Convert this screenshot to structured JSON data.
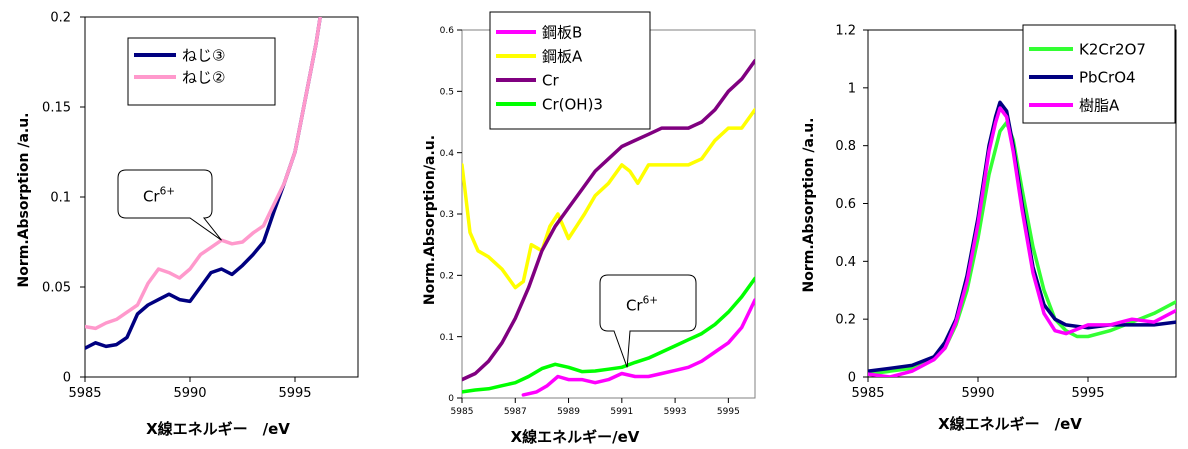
{
  "chart_data": [
    {
      "type": "line",
      "xlabel": "X線エネルギー　/eV",
      "ylabel": "Norm.Absorption /a.u.",
      "xlim": [
        5985,
        5998
      ],
      "ylim": [
        0,
        0.2
      ],
      "xticks": [
        "5985",
        "5990",
        "5995"
      ],
      "xtick_values": [
        5985,
        5990,
        5995
      ],
      "yticks": [
        "0",
        "0.05",
        "0.1",
        "0.15",
        "0.2"
      ],
      "ytick_values": [
        0,
        0.05,
        0.1,
        0.15,
        0.2
      ],
      "legend": {
        "placement": "top-center"
      },
      "annotation": {
        "base": "Cr",
        "sup": "6+",
        "x": 5991.5,
        "y": 0.076
      },
      "series": [
        {
          "name": "ねじ③",
          "color": "#000080",
          "x": [
            5985,
            5985.5,
            5986,
            5986.5,
            5987,
            5987.5,
            5988,
            5988.5,
            5989,
            5989.5,
            5990,
            5990.5,
            5991,
            5991.5,
            5992,
            5992.5,
            5993,
            5993.5,
            5994,
            5994.5,
            5995,
            5995.5,
            5996,
            5996.2
          ],
          "y": [
            0.016,
            0.019,
            0.017,
            0.018,
            0.022,
            0.035,
            0.04,
            0.043,
            0.046,
            0.043,
            0.042,
            0.05,
            0.058,
            0.06,
            0.057,
            0.062,
            0.068,
            0.075,
            0.092,
            0.108,
            0.125,
            0.155,
            0.185,
            0.2
          ]
        },
        {
          "name": "ねじ②",
          "color": "#ff99cc",
          "x": [
            5985,
            5985.5,
            5986,
            5986.5,
            5987,
            5987.5,
            5988,
            5988.5,
            5989,
            5989.5,
            5990,
            5990.5,
            5991,
            5991.5,
            5992,
            5992.5,
            5993,
            5993.5,
            5994,
            5994.5,
            5995,
            5995.5,
            5996,
            5996.2
          ],
          "y": [
            0.028,
            0.027,
            0.03,
            0.032,
            0.036,
            0.04,
            0.052,
            0.06,
            0.058,
            0.055,
            0.06,
            0.068,
            0.072,
            0.076,
            0.074,
            0.075,
            0.08,
            0.084,
            0.096,
            0.108,
            0.125,
            0.155,
            0.185,
            0.2
          ]
        }
      ]
    },
    {
      "type": "line",
      "xlabel": "X線エネルギー/eV",
      "ylabel": "Norm.Absorption/a.u.",
      "xlim": [
        5985,
        5996
      ],
      "ylim": [
        0,
        0.6
      ],
      "xticks": [
        "5985",
        "5987",
        "5989",
        "5991",
        "5993",
        "5995"
      ],
      "xtick_values": [
        5985,
        5987,
        5989,
        5991,
        5993,
        5995
      ],
      "yticks": [
        "0",
        "0.1",
        "0.2",
        "0.3",
        "0.4",
        "0.5",
        "0.6"
      ],
      "ytick_values": [
        0,
        0.1,
        0.2,
        0.3,
        0.4,
        0.5,
        0.6
      ],
      "legend": {
        "placement": "top-left"
      },
      "annotation": {
        "base": "Cr",
        "sup": "6+",
        "x": 5991.2,
        "y": 0.05
      },
      "series": [
        {
          "name": "鋼板B",
          "color": "#ff00ff",
          "x": [
            5987.3,
            5987.8,
            5988.2,
            5988.6,
            5989,
            5989.5,
            5990,
            5990.5,
            5991,
            5991.5,
            5992,
            5992.5,
            5993,
            5993.5,
            5994,
            5994.5,
            5995,
            5995.5,
            5996
          ],
          "y": [
            0.005,
            0.01,
            0.02,
            0.035,
            0.03,
            0.03,
            0.025,
            0.03,
            0.04,
            0.035,
            0.035,
            0.04,
            0.045,
            0.05,
            0.06,
            0.075,
            0.09,
            0.115,
            0.16
          ]
        },
        {
          "name": "鋼板A",
          "color": "#ffff00",
          "x": [
            5985,
            5985.3,
            5985.6,
            5986,
            5986.5,
            5987,
            5987.3,
            5987.6,
            5988,
            5988.3,
            5988.6,
            5989,
            5989.3,
            5989.6,
            5990,
            5990.5,
            5991,
            5991.3,
            5991.6,
            5992,
            5992.5,
            5993,
            5993.5,
            5994,
            5994.5,
            5995,
            5995.5,
            5996
          ],
          "y": [
            0.38,
            0.27,
            0.24,
            0.23,
            0.21,
            0.18,
            0.19,
            0.25,
            0.24,
            0.28,
            0.3,
            0.26,
            0.28,
            0.3,
            0.33,
            0.35,
            0.38,
            0.37,
            0.35,
            0.38,
            0.38,
            0.38,
            0.38,
            0.39,
            0.42,
            0.44,
            0.44,
            0.47
          ]
        },
        {
          "name": "Cr",
          "color": "#800080",
          "x": [
            5985,
            5985.5,
            5986,
            5986.5,
            5987,
            5987.5,
            5988,
            5988.5,
            5989,
            5989.5,
            5990,
            5990.5,
            5991,
            5991.5,
            5992,
            5992.5,
            5993,
            5993.5,
            5994,
            5994.5,
            5995,
            5995.5,
            5996
          ],
          "y": [
            0.03,
            0.04,
            0.06,
            0.09,
            0.13,
            0.18,
            0.24,
            0.28,
            0.31,
            0.34,
            0.37,
            0.39,
            0.41,
            0.42,
            0.43,
            0.44,
            0.44,
            0.44,
            0.45,
            0.47,
            0.5,
            0.52,
            0.55
          ]
        },
        {
          "name": "Cr(OH)3",
          "color": "#00ff00",
          "x": [
            5985,
            5985.5,
            5986,
            5986.5,
            5987,
            5987.5,
            5988,
            5988.5,
            5989,
            5989.5,
            5990,
            5990.5,
            5991,
            5991.5,
            5992,
            5992.5,
            5993,
            5993.5,
            5994,
            5994.5,
            5995,
            5995.5,
            5996
          ],
          "y": [
            0.01,
            0.013,
            0.015,
            0.02,
            0.025,
            0.035,
            0.048,
            0.055,
            0.05,
            0.043,
            0.044,
            0.047,
            0.05,
            0.058,
            0.065,
            0.075,
            0.085,
            0.095,
            0.105,
            0.12,
            0.14,
            0.165,
            0.195
          ]
        }
      ]
    },
    {
      "type": "line",
      "xlabel": "X線エネルギー　/eV",
      "ylabel": "Norm.Absorption /a.u.",
      "xlim": [
        5985,
        5999
      ],
      "ylim": [
        0,
        1.2
      ],
      "xticks": [
        "5985",
        "5990",
        "5995"
      ],
      "xtick_values": [
        5985,
        5990,
        5995
      ],
      "yticks": [
        "0",
        "0.2",
        "0.4",
        "0.6",
        "0.8",
        "1",
        "1.2"
      ],
      "ytick_values": [
        0,
        0.2,
        0.4,
        0.6,
        0.8,
        1,
        1.2
      ],
      "legend": {
        "placement": "top-right"
      },
      "series": [
        {
          "name": "K2Cr2O7",
          "color": "#33ff33",
          "x": [
            5985,
            5986,
            5987,
            5988,
            5988.5,
            5989,
            5989.5,
            5990,
            5990.5,
            5991,
            5991.3,
            5991.6,
            5992,
            5992.5,
            5993,
            5993.5,
            5994,
            5994.5,
            5995,
            5996,
            5997,
            5998,
            5999
          ],
          "y": [
            0.01,
            0.02,
            0.03,
            0.06,
            0.1,
            0.18,
            0.3,
            0.48,
            0.7,
            0.85,
            0.88,
            0.82,
            0.65,
            0.45,
            0.3,
            0.2,
            0.16,
            0.14,
            0.14,
            0.16,
            0.19,
            0.22,
            0.26
          ]
        },
        {
          "name": "PbCrO4",
          "color": "#000080",
          "x": [
            5985,
            5986,
            5987,
            5988,
            5988.5,
            5989,
            5989.5,
            5990,
            5990.5,
            5990.8,
            5991,
            5991.3,
            5991.6,
            5992,
            5992.5,
            5993,
            5993.5,
            5994,
            5995,
            5996,
            5997,
            5998,
            5999
          ],
          "y": [
            0.02,
            0.03,
            0.04,
            0.07,
            0.12,
            0.2,
            0.35,
            0.55,
            0.8,
            0.9,
            0.95,
            0.92,
            0.8,
            0.6,
            0.38,
            0.25,
            0.2,
            0.18,
            0.17,
            0.18,
            0.18,
            0.18,
            0.19
          ]
        },
        {
          "name": "樹脂A",
          "color": "#ff00ff",
          "x": [
            5985,
            5986,
            5987,
            5988,
            5988.5,
            5989,
            5989.5,
            5990,
            5990.5,
            5990.8,
            5991,
            5991.3,
            5991.6,
            5992,
            5992.5,
            5993,
            5993.5,
            5994,
            5995,
            5996,
            5997,
            5998,
            5999
          ],
          "y": [
            0.01,
            0.0,
            0.02,
            0.06,
            0.1,
            0.19,
            0.33,
            0.53,
            0.78,
            0.88,
            0.93,
            0.9,
            0.78,
            0.58,
            0.36,
            0.22,
            0.16,
            0.15,
            0.18,
            0.18,
            0.2,
            0.19,
            0.23
          ]
        }
      ]
    }
  ]
}
